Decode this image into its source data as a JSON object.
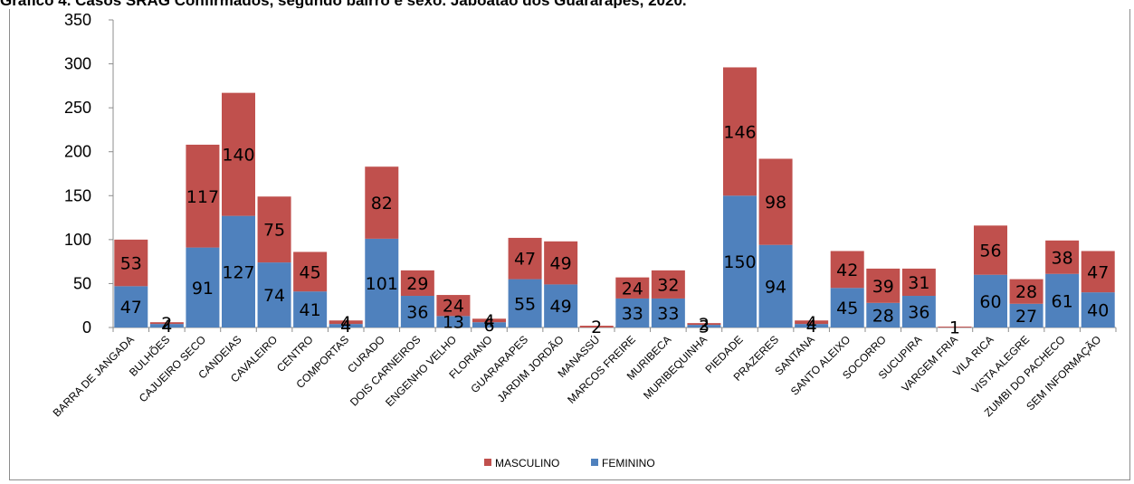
{
  "title": "Gráfico 4. Casos SRAG Confirmados, segundo bairro e sexo. Jaboatão dos Guararapes, 2020.",
  "chart_data": {
    "type": "bar",
    "stacked": true,
    "categories": [
      "BARRA DE JANGADA",
      "BULHÕES",
      "CAJUEIRO SECO",
      "CANDEIAS",
      "CAVALEIRO",
      "CENTRO",
      "COMPORTAS",
      "CURADO",
      "DOIS CARNEIROS",
      "ENGENHO VELHO",
      "FLORIANO",
      "GUARARAPES",
      "JARDIM JORDÃO",
      "MANASSÚ",
      "MARCOS FREIRE",
      "MURIBECA",
      "MURIBEQUINHA",
      "PIEDADE",
      "PRAZERES",
      "SANTANA",
      "SANTO ALEIXO",
      "SOCORRO",
      "SUCUPIRA",
      "VARGEM FRIA",
      "VILA RICA",
      "VISTA ALEGRE",
      "ZUMBI DO PACHECO",
      "SEM INFORMAÇÃO"
    ],
    "series": [
      {
        "name": "FEMININO",
        "color": "#4f81bd",
        "values": [
          47,
          4,
          91,
          127,
          74,
          41,
          4,
          101,
          36,
          13,
          6,
          55,
          49,
          0,
          33,
          33,
          3,
          150,
          94,
          4,
          45,
          28,
          36,
          0,
          60,
          27,
          61,
          40
        ]
      },
      {
        "name": "MASCULINO",
        "color": "#c0504d",
        "values": [
          53,
          2,
          117,
          140,
          75,
          45,
          4,
          82,
          29,
          24,
          4,
          47,
          49,
          2,
          24,
          32,
          2,
          146,
          98,
          4,
          42,
          39,
          31,
          1,
          56,
          28,
          38,
          47
        ]
      }
    ],
    "ylim": [
      0,
      350
    ],
    "yticks": [
      0,
      50,
      100,
      150,
      200,
      250,
      300,
      350
    ],
    "legend": "bottom",
    "grid": false
  }
}
